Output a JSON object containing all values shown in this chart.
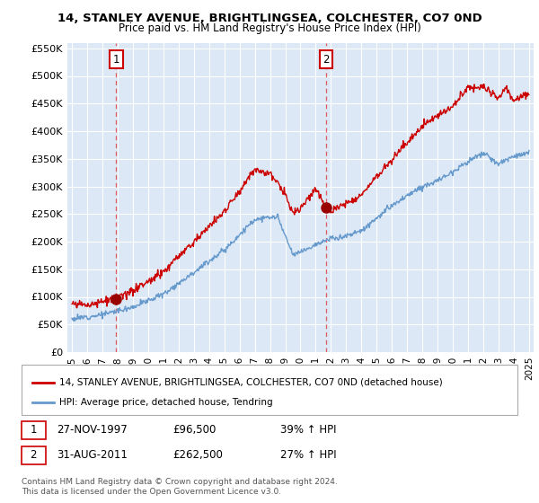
{
  "title1": "14, STANLEY AVENUE, BRIGHTLINGSEA, COLCHESTER, CO7 0ND",
  "title2": "Price paid vs. HM Land Registry's House Price Index (HPI)",
  "legend_label1": "14, STANLEY AVENUE, BRIGHTLINGSEA, COLCHESTER, CO7 0ND (detached house)",
  "legend_label2": "HPI: Average price, detached house, Tendring",
  "line1_color": "#cc0000",
  "line2_color": "#6699cc",
  "vline_color": "#dd4444",
  "marker_color": "#990000",
  "annotation1_label": "1",
  "annotation1_date": "27-NOV-1997",
  "annotation1_price": "£96,500",
  "annotation1_hpi": "39% ↑ HPI",
  "annotation2_label": "2",
  "annotation2_date": "31-AUG-2011",
  "annotation2_price": "£262,500",
  "annotation2_hpi": "27% ↑ HPI",
  "vline1_x": 1997.9,
  "vline2_x": 2011.67,
  "marker1_x": 1997.9,
  "marker1_y": 96500,
  "marker2_x": 2011.67,
  "marker2_y": 262500,
  "ylim": [
    0,
    560000
  ],
  "xlim_start": 1994.7,
  "xlim_end": 2025.3,
  "yticks": [
    0,
    50000,
    100000,
    150000,
    200000,
    250000,
    300000,
    350000,
    400000,
    450000,
    500000,
    550000
  ],
  "ytick_labels": [
    "£0",
    "£50K",
    "£100K",
    "£150K",
    "£200K",
    "£250K",
    "£300K",
    "£350K",
    "£400K",
    "£450K",
    "£500K",
    "£550K"
  ],
  "xticks": [
    1995,
    1996,
    1997,
    1998,
    1999,
    2000,
    2001,
    2002,
    2003,
    2004,
    2005,
    2006,
    2007,
    2008,
    2009,
    2010,
    2011,
    2012,
    2013,
    2014,
    2015,
    2016,
    2017,
    2018,
    2019,
    2020,
    2021,
    2022,
    2023,
    2024,
    2025
  ],
  "footer": "Contains HM Land Registry data © Crown copyright and database right 2024.\nThis data is licensed under the Open Government Licence v3.0.",
  "background_color": "#ffffff",
  "plot_bg_color": "#dce8f5",
  "grid_color": "#ffffff"
}
